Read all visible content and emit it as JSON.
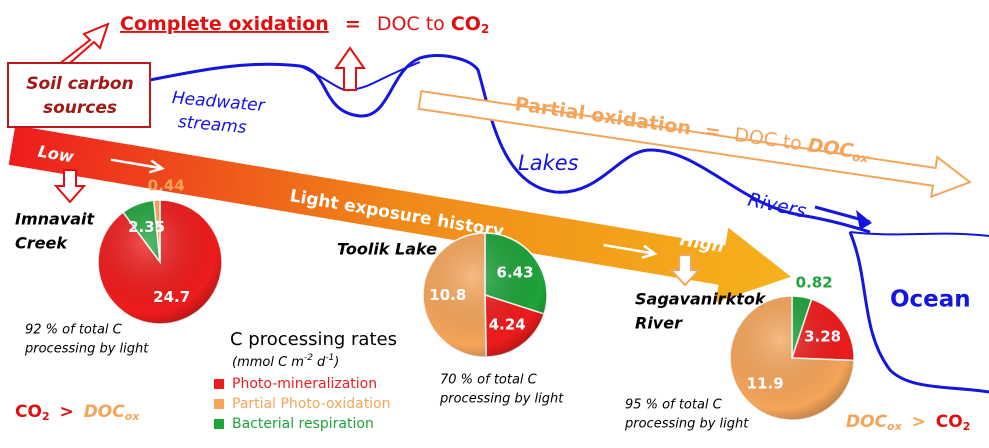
{
  "complete": {
    "label": "Complete oxidation",
    "eq": "=",
    "lhs": "DOC to",
    "chem": "CO",
    "sub": "2"
  },
  "partial": {
    "label": "Partial oxidation",
    "eq": "=",
    "lhs": "DOC to",
    "chem": "DOC",
    "sub": "ox"
  },
  "soil": [
    "Soil carbon",
    "sources"
  ],
  "headwater": [
    "Headwater",
    "streams"
  ],
  "lakes": "Lakes",
  "rivers": "Rivers",
  "ocean": "Ocean",
  "light": {
    "low": "Low",
    "label": "Light exposure history",
    "high": "High"
  },
  "legend": {
    "title": "C processing rates",
    "units": {
      "pre": "(mmol C m",
      "e1": "-2",
      "mid": "d",
      "e2": "-1",
      "post": ")"
    },
    "items": [
      {
        "label": "Photo-mineralization",
        "color": "#ee1c1c"
      },
      {
        "label": "Partial Photo-oxidation",
        "color": "#f5a55a"
      },
      {
        "label": "Bacterial respiration",
        "color": "#1ea33a"
      }
    ]
  },
  "left_note": {
    "chem": "CO",
    "sub": "2",
    "gt": ">",
    "rhs": "DOC",
    "rsub": "ox"
  },
  "right_note": {
    "lhs": "DOC",
    "lsub": "ox",
    "gt": ">",
    "chem": "CO",
    "sub": "2"
  },
  "sites": [
    {
      "name": [
        "Imnavait",
        "Creek"
      ],
      "note": [
        "92 % of total C",
        "processing by light"
      ],
      "slices": [
        {
          "value": 24.7,
          "color": "#ee1c1c"
        },
        {
          "value": 2.35,
          "color": "#1ea33a"
        },
        {
          "value": 0.44,
          "color": "#f5a55a"
        }
      ]
    },
    {
      "name": [
        "Toolik Lake"
      ],
      "note": [
        "70 % of total C",
        "processing by light"
      ],
      "slices": [
        {
          "value": 6.43,
          "color": "#1ea33a"
        },
        {
          "value": 4.24,
          "color": "#ee1c1c"
        },
        {
          "value": 10.8,
          "color": "#f5a55a"
        }
      ]
    },
    {
      "name": [
        "Sagavanirktok",
        "River"
      ],
      "note": [
        "95 % of total C",
        "processing by light"
      ],
      "slices": [
        {
          "value": 0.82,
          "color": "#1ea33a"
        },
        {
          "value": 3.28,
          "color": "#ee1c1c"
        },
        {
          "value": 11.9,
          "color": "#f5a55a"
        }
      ]
    }
  ]
}
